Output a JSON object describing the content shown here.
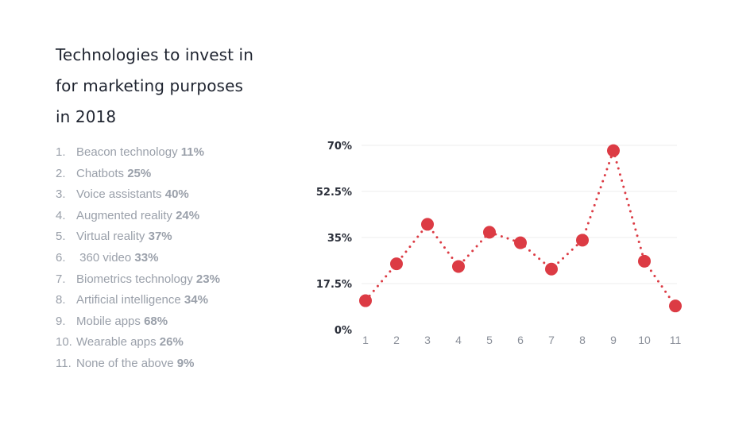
{
  "title_lines": [
    "Technologies to invest in",
    "for marketing purposes",
    "in 2018"
  ],
  "list": [
    {
      "num": "1.",
      "label": "Beacon technology",
      "value": "11%"
    },
    {
      "num": "2.",
      "label": "Chatbots",
      "value": "25%"
    },
    {
      "num": "3.",
      "label": "Voice assistants",
      "value": "40%"
    },
    {
      "num": "4.",
      "label": "Augmented reality",
      "value": "24%"
    },
    {
      "num": "5.",
      "label": "Virtual reality",
      "value": "37%"
    },
    {
      "num": "6.",
      "label": " 360 video",
      "value": "33%"
    },
    {
      "num": "7.",
      "label": "Biometrics technology",
      "value": "23%"
    },
    {
      "num": "8.",
      "label": "Artificial intelligence",
      "value": "34%"
    },
    {
      "num": "9.",
      "label": "Mobile apps",
      "value": "68%"
    },
    {
      "num": "10.",
      "label": "Wearable apps",
      "value": "26%"
    },
    {
      "num": "11.",
      "label": "None of the above",
      "value": "9%"
    }
  ],
  "chart_data": {
    "type": "line",
    "title": "Technologies to invest in for marketing purposes in 2018",
    "x": [
      1,
      2,
      3,
      4,
      5,
      6,
      7,
      8,
      9,
      10,
      11
    ],
    "series": [
      {
        "values": [
          11,
          25,
          40,
          24,
          37,
          33,
          23,
          34,
          68,
          26,
          9
        ]
      }
    ],
    "ylim": [
      0,
      70
    ],
    "yticks": [
      "0%",
      "17.5%",
      "35%",
      "52.5%",
      "70%"
    ],
    "ytick_values": [
      0,
      17.5,
      35,
      52.5,
      70
    ],
    "xticks": [
      "1",
      "2",
      "3",
      "4",
      "5",
      "6",
      "7",
      "8",
      "9",
      "10",
      "11"
    ],
    "grid": true,
    "line_style": "dotted",
    "colors": {
      "marker": "#dc3b44",
      "line": "#dc3b44",
      "grid": "#eeeeee",
      "ytick": "#2b2f3a",
      "xtick": "#8a8f99"
    }
  }
}
